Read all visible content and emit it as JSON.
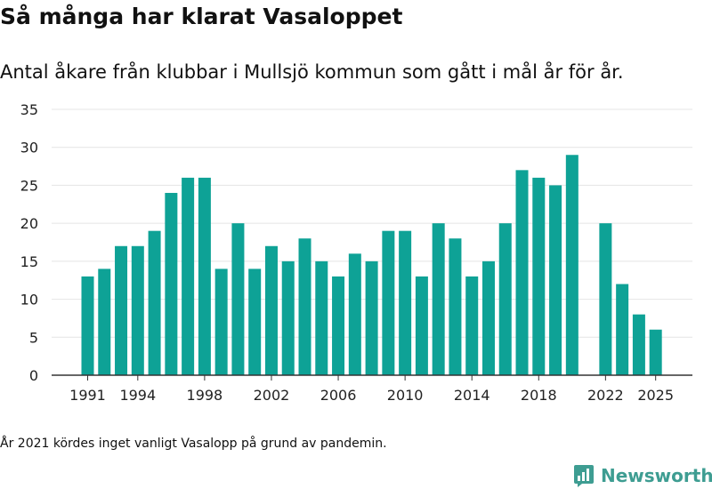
{
  "title": "Så många har klarat Vasaloppet",
  "subtitle": "Antal åkare från klubbar i Mullsjö kommun som gått i mål år för år.",
  "note": "År 2021 kördes inget vanligt Vasalopp på grund av pandemin.",
  "brand": {
    "name": "Newsworthy",
    "icon": "newsworthy-logo-icon",
    "color": "#3e9d92"
  },
  "chart_data": {
    "type": "bar",
    "x": [
      1991,
      1992,
      1993,
      1994,
      1995,
      1996,
      1997,
      1998,
      1999,
      2000,
      2001,
      2002,
      2003,
      2004,
      2005,
      2006,
      2007,
      2008,
      2009,
      2010,
      2011,
      2012,
      2013,
      2014,
      2015,
      2016,
      2017,
      2018,
      2019,
      2020,
      2021,
      2022,
      2023,
      2024,
      2025
    ],
    "values": [
      13,
      14,
      17,
      17,
      19,
      24,
      26,
      26,
      14,
      20,
      14,
      17,
      15,
      18,
      15,
      13,
      16,
      15,
      19,
      19,
      13,
      20,
      18,
      13,
      15,
      20,
      27,
      26,
      25,
      29,
      null,
      20,
      12,
      8,
      6
    ],
    "xticks": [
      "1991",
      "1994",
      "1998",
      "2002",
      "2006",
      "2010",
      "2014",
      "2018",
      "2022",
      "2025"
    ],
    "yticks": [
      "0",
      "5",
      "10",
      "15",
      "20",
      "25",
      "30",
      "35"
    ],
    "ylim": [
      0,
      35
    ],
    "grid": true,
    "bar_color": "#0ea296",
    "grid_color": "#e4e4e4",
    "axis_color": "#333333"
  }
}
